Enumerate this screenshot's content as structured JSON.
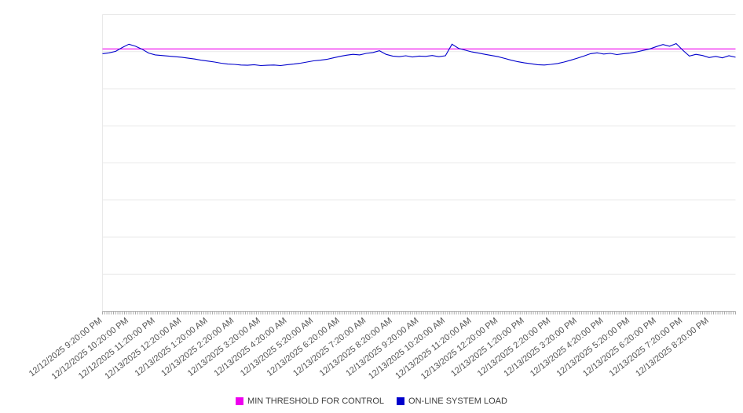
{
  "chart_data": {
    "type": "line",
    "title": "",
    "ylim": [
      0,
      100
    ],
    "grid_divisions": 8,
    "grid": "horizontal",
    "legend_position": "bottom",
    "x_labels": [
      "12/12/2025 9:20:00 PM",
      "12/12/2025 10:20:00 PM",
      "12/12/2025 11:20:00 PM",
      "12/13/2025 12:20:00 AM",
      "12/13/2025 1:20:00 AM",
      "12/13/2025 2:20:00 AM",
      "12/13/2025 3:20:00 AM",
      "12/13/2025 4:20:00 AM",
      "12/13/2025 5:20:00 AM",
      "12/13/2025 6:20:00 AM",
      "12/13/2025 7:20:00 AM",
      "12/13/2025 8:20:00 AM",
      "12/13/2025 9:20:00 AM",
      "12/13/2025 10:20:00 AM",
      "12/13/2025 11:20:00 AM",
      "12/13/2025 12:20:00 PM",
      "12/13/2025 1:20:00 PM",
      "12/13/2025 2:20:00 PM",
      "12/13/2025 3:20:00 PM",
      "12/13/2025 4:20:00 PM",
      "12/13/2025 5:20:00 PM",
      "12/13/2025 6:20:00 PM",
      "12/13/2025 7:20:00 PM",
      "12/13/2025 8:20:00 PM"
    ],
    "x_labels_every_n_points": 4,
    "series": [
      {
        "name": "MIN THRESHOLD FOR CONTROL",
        "color": "#ee00ee",
        "style": "constant",
        "value": 88.4
      },
      {
        "name": "ON-LINE SYSTEM LOAD",
        "color": "#0000cc",
        "values": [
          86.8,
          87.1,
          87.6,
          88.9,
          90.0,
          89.3,
          88.3,
          87.0,
          86.4,
          86.2,
          86.0,
          85.8,
          85.6,
          85.3,
          85.0,
          84.6,
          84.3,
          84.0,
          83.6,
          83.3,
          83.2,
          83.0,
          82.9,
          83.1,
          82.8,
          82.9,
          83.0,
          82.8,
          83.1,
          83.3,
          83.6,
          84.0,
          84.4,
          84.6,
          84.9,
          85.4,
          85.9,
          86.3,
          86.6,
          86.4,
          86.9,
          87.2,
          87.8,
          86.6,
          86.0,
          85.8,
          86.1,
          85.7,
          86.0,
          85.9,
          86.2,
          85.8,
          86.1,
          90.0,
          88.6,
          88.0,
          87.4,
          87.0,
          86.6,
          86.2,
          85.8,
          85.2,
          84.6,
          84.1,
          83.7,
          83.4,
          83.1,
          83.0,
          83.2,
          83.5,
          84.0,
          84.6,
          85.3,
          86.0,
          86.8,
          87.1,
          86.7,
          86.9,
          86.5,
          86.8,
          87.0,
          87.4,
          87.9,
          88.4,
          89.2,
          89.9,
          89.3,
          90.2,
          88.0,
          86.0,
          86.6,
          86.2,
          85.5,
          85.9,
          85.4,
          86.1,
          85.6
        ]
      }
    ]
  },
  "colors": {
    "background": "#ffffff",
    "grid": "#e9e9e9",
    "axis": "#b5b5b5",
    "tick": "#ababab",
    "tick_label": "#545454",
    "legend_text": "#3c3c3c"
  }
}
